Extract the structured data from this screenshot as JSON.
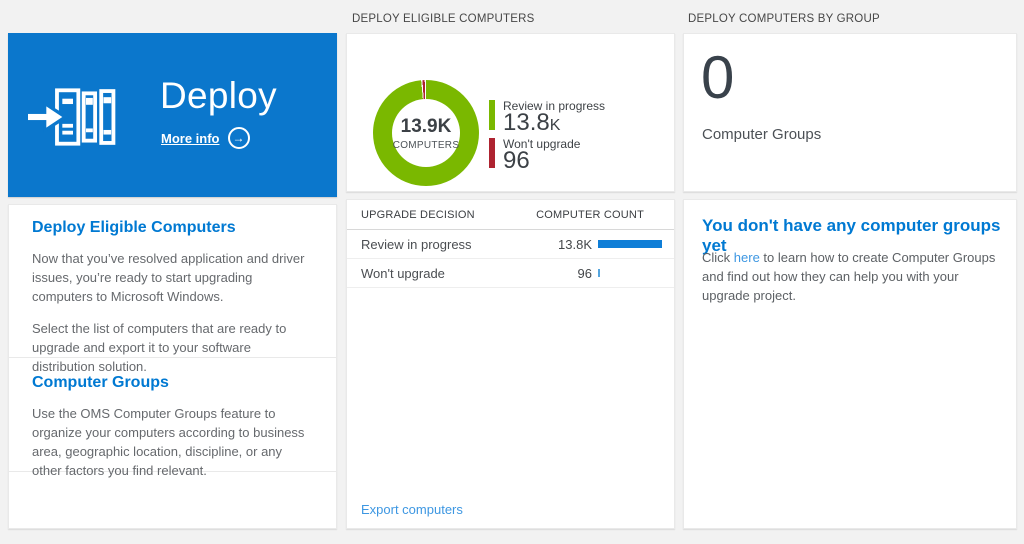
{
  "colors": {
    "page-bg": "#f2f2f2",
    "tile-blue": "#0b77cc",
    "heading-blue": "#0079d2",
    "link-blue": "#3d97e2",
    "text-gray": "#66696d",
    "green": "#7ab800",
    "red": "#ae2330",
    "bar-blue": "#0f7ed7"
  },
  "headers": {
    "middle": "DEPLOY ELIGIBLE COMPUTERS",
    "right": "DEPLOY COMPUTERS BY GROUP"
  },
  "tile": {
    "title": "Deploy",
    "more_info_label": "More info",
    "arrow_icon": "→"
  },
  "left_panel": {
    "section1": {
      "heading": "Deploy Eligible Computers",
      "p1": "Now that you’ve resolved application and driver issues, you’re ready to start upgrading computers to Microsoft Windows.",
      "p2": "Select the list of computers that are ready to upgrade and export it to your software distribution solution."
    },
    "section2": {
      "heading": "Computer Groups",
      "p1": "Use the OMS Computer Groups feature to organize your computers according to business area, geographic location, discipline, or any other factors you find relevant."
    }
  },
  "chart_data": {
    "type": "pie",
    "variant": "donut",
    "title": "DEPLOY ELIGIBLE COMPUTERS",
    "center_value": "13.9K",
    "center_label": "COMPUTERS",
    "total": 13896,
    "legend_position": "right",
    "segments": [
      {
        "label": "Review in progress",
        "value": 13800,
        "display_value": "13.8",
        "display_suffix": "K",
        "color": "#7ab800",
        "bar_color": "#0f7ed7"
      },
      {
        "label": "Won't upgrade",
        "value": 96,
        "display_value": "96",
        "display_suffix": "",
        "color": "#ae2330",
        "bar_color": "#55a5de"
      }
    ]
  },
  "table": {
    "col1_header": "UPGRADE DECISION",
    "col2_header": "COMPUTER COUNT",
    "rows": [
      {
        "label": "Review in progress",
        "count": "13.8K"
      },
      {
        "label": "Won't upgrade",
        "count": "96"
      }
    ],
    "export_label": "Export computers"
  },
  "right_panel": {
    "group_count": "0",
    "group_count_label": "Computer Groups",
    "empty_heading": "You don't have any computer groups yet",
    "empty_text_before": "Click ",
    "empty_link": "here",
    "empty_text_after": " to learn how to create Computer Groups and find out how they can help you with your upgrade project."
  }
}
